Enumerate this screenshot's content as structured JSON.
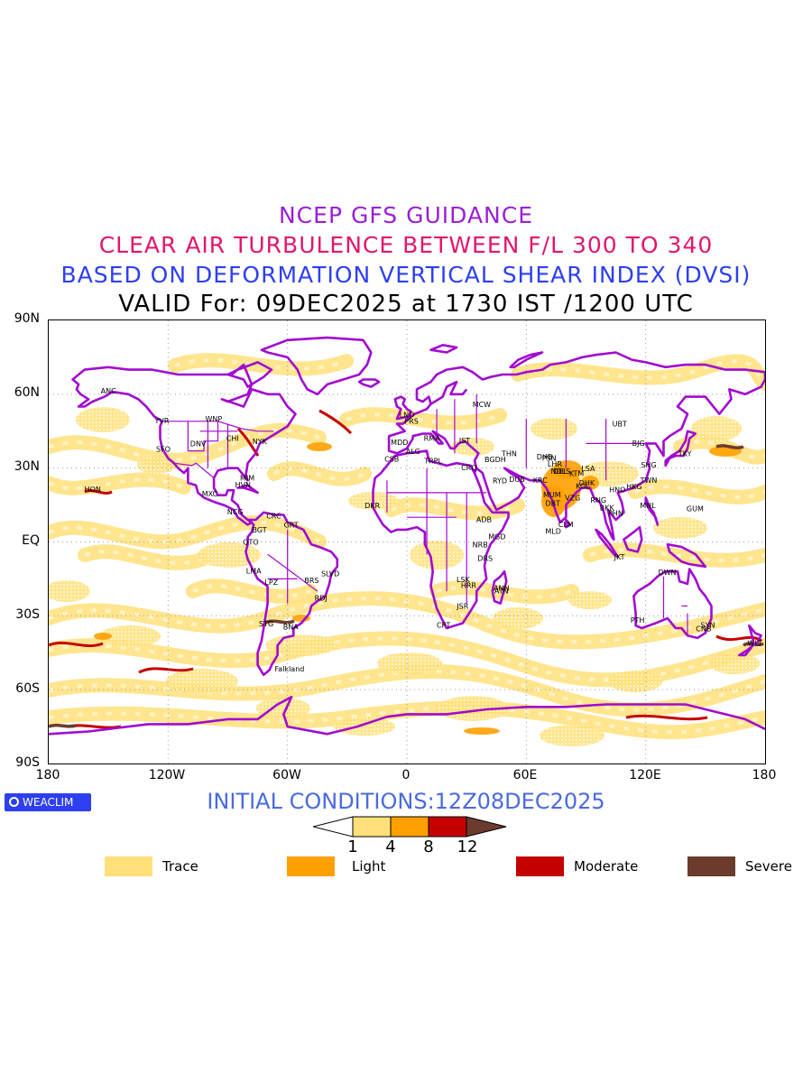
{
  "titles": {
    "line1": "NCEP GFS GUIDANCE",
    "line2": "CLEAR AIR TURBULENCE BETWEEN F/L 300 TO 340",
    "line3": "BASED ON DEFORMATION VERTICAL SHEAR INDEX (DVSI)",
    "line4": "VALID For: 09DEC2025 at 1730 IST /1200 UTC"
  },
  "axes": {
    "lat_labels": [
      "90N",
      "60N",
      "30N",
      "EQ",
      "30S",
      "60S",
      "90S"
    ],
    "lon_labels": [
      "180",
      "120W",
      "60W",
      "0",
      "60E",
      "120E",
      "180"
    ]
  },
  "initial_conditions": "INITIAL CONDITIONS:12Z08DEC2025",
  "brand": "WEACLIM",
  "colorbar": {
    "ticks": [
      "1",
      "4",
      "8",
      "12"
    ],
    "colors": [
      "#ffffff",
      "#ffe07a",
      "#ffa000",
      "#c40000",
      "#6b3c2e"
    ]
  },
  "legend": [
    {
      "label": "Trace",
      "color": "#ffe07a"
    },
    {
      "label": "Light",
      "color": "#ffa000"
    },
    {
      "label": "Moderate",
      "color": "#c40000"
    },
    {
      "label": "Severe",
      "color": "#6b3c2e"
    }
  ],
  "colors": {
    "coastline": "#a20ad0",
    "grid": "#999999"
  },
  "stations": [
    {
      "code": "ANC",
      "lon": -150,
      "lat": 61.2
    },
    {
      "code": "YVR",
      "lon": -123.1,
      "lat": 49.2
    },
    {
      "code": "WNP",
      "lon": -97.1,
      "lat": 49.9
    },
    {
      "code": "SFO",
      "lon": -122.4,
      "lat": 37.6
    },
    {
      "code": "DNV",
      "lon": -104.9,
      "lat": 39.7
    },
    {
      "code": "CHI",
      "lon": -87.6,
      "lat": 41.9
    },
    {
      "code": "NYK",
      "lon": -74,
      "lat": 40.7
    },
    {
      "code": "HON",
      "lon": -157.9,
      "lat": 21.3
    },
    {
      "code": "MXC",
      "lon": -99.1,
      "lat": 19.4
    },
    {
      "code": "MIM",
      "lon": -80.2,
      "lat": 25.8
    },
    {
      "code": "HVN",
      "lon": -82.4,
      "lat": 23.1
    },
    {
      "code": "NCG",
      "lon": -86.3,
      "lat": 12.1
    },
    {
      "code": "BGT",
      "lon": -74.1,
      "lat": 4.7
    },
    {
      "code": "CRC",
      "lon": -66.9,
      "lat": 10.5
    },
    {
      "code": "QTO",
      "lon": -78.5,
      "lat": -0.2
    },
    {
      "code": "GRT",
      "lon": -58.2,
      "lat": 6.8
    },
    {
      "code": "LMA",
      "lon": -77,
      "lat": -12
    },
    {
      "code": "LPZ",
      "lon": -68.1,
      "lat": -16.5
    },
    {
      "code": "BRS",
      "lon": -47.9,
      "lat": -15.8
    },
    {
      "code": "SLVD",
      "lon": -38.5,
      "lat": -13
    },
    {
      "code": "RDJ",
      "lon": -43.2,
      "lat": -22.9
    },
    {
      "code": "STG",
      "lon": -70.7,
      "lat": -33.4
    },
    {
      "code": "BNA",
      "lon": -58.4,
      "lat": -34.6
    },
    {
      "code": "Falkland",
      "lon": -59,
      "lat": -51.7
    },
    {
      "code": "MDD",
      "lon": -3.7,
      "lat": 40.4
    },
    {
      "code": "CSB",
      "lon": -7.6,
      "lat": 33.6
    },
    {
      "code": "ALG",
      "lon": 3.1,
      "lat": 36.7
    },
    {
      "code": "LND",
      "lon": 0,
      "lat": 51.5
    },
    {
      "code": "PRS",
      "lon": 2.3,
      "lat": 48.9
    },
    {
      "code": "RMA",
      "lon": 12.5,
      "lat": 41.9
    },
    {
      "code": "IST",
      "lon": 29,
      "lat": 41
    },
    {
      "code": "MCW",
      "lon": 37.6,
      "lat": 55.8
    },
    {
      "code": "TRPL",
      "lon": 13.2,
      "lat": 32.9
    },
    {
      "code": "CRO",
      "lon": 31.2,
      "lat": 30
    },
    {
      "code": "DKR",
      "lon": -17.4,
      "lat": 14.7
    },
    {
      "code": "ADB",
      "lon": 38.7,
      "lat": 9
    },
    {
      "code": "NRB",
      "lon": 36.8,
      "lat": -1.3
    },
    {
      "code": "DRS",
      "lon": 39.3,
      "lat": -6.8
    },
    {
      "code": "MGD",
      "lon": 45.3,
      "lat": 2
    },
    {
      "code": "ANN",
      "lon": 47.5,
      "lat": -18.9
    },
    {
      "code": "ATN",
      "lon": 47.5,
      "lat": -20
    },
    {
      "code": "HRR",
      "lon": 31,
      "lat": -17.8
    },
    {
      "code": "LSK",
      "lon": 28.3,
      "lat": -15.4
    },
    {
      "code": "JSR",
      "lon": 28,
      "lat": -26.2
    },
    {
      "code": "CPT",
      "lon": 18.4,
      "lat": -33.9
    },
    {
      "code": "BGDH",
      "lon": 44.4,
      "lat": 33.3
    },
    {
      "code": "THN",
      "lon": 51.4,
      "lat": 35.7
    },
    {
      "code": "RYD",
      "lon": 46.7,
      "lat": 24.7
    },
    {
      "code": "DUB",
      "lon": 55.3,
      "lat": 25.3
    },
    {
      "code": "KRC",
      "lon": 67,
      "lat": 24.9
    },
    {
      "code": "DHB",
      "lon": 69.2,
      "lat": 34.5
    },
    {
      "code": "PSN",
      "lon": 71.5,
      "lat": 34
    },
    {
      "code": "LHR",
      "lon": 74.3,
      "lat": 31.5
    },
    {
      "code": "DEL",
      "lon": 77.1,
      "lat": 28.6
    },
    {
      "code": "NDLS",
      "lon": 77.2,
      "lat": 28.6
    },
    {
      "code": "MUM",
      "lon": 72.9,
      "lat": 19.1
    },
    {
      "code": "DBT",
      "lon": 73.3,
      "lat": 15.5
    },
    {
      "code": "MLD",
      "lon": 73.5,
      "lat": 4.2
    },
    {
      "code": "CLM",
      "lon": 79.9,
      "lat": 6.9
    },
    {
      "code": "VZG",
      "lon": 83.3,
      "lat": 17.7
    },
    {
      "code": "KOL",
      "lon": 88.4,
      "lat": 22.6
    },
    {
      "code": "KTM",
      "lon": 85.3,
      "lat": 27.7
    },
    {
      "code": "LSA",
      "lon": 91.1,
      "lat": 29.7
    },
    {
      "code": "DHK",
      "lon": 90.4,
      "lat": 23.8
    },
    {
      "code": "RNG",
      "lon": 96.2,
      "lat": 16.8
    },
    {
      "code": "BKK",
      "lon": 100.5,
      "lat": 13.8
    },
    {
      "code": "PHN",
      "lon": 104.9,
      "lat": 11.6
    },
    {
      "code": "HNO",
      "lon": 105.8,
      "lat": 21
    },
    {
      "code": "HKG",
      "lon": 114.2,
      "lat": 22.3
    },
    {
      "code": "TWN",
      "lon": 121.5,
      "lat": 25
    },
    {
      "code": "SHG",
      "lon": 121.5,
      "lat": 31.2
    },
    {
      "code": "BJG",
      "lon": 116.4,
      "lat": 39.9
    },
    {
      "code": "UBT",
      "lon": 106.9,
      "lat": 47.9
    },
    {
      "code": "TKY",
      "lon": 139.7,
      "lat": 35.7
    },
    {
      "code": "MNL",
      "lon": 121,
      "lat": 14.6
    },
    {
      "code": "GUM",
      "lon": 144.8,
      "lat": 13.4
    },
    {
      "code": "JKT",
      "lon": 106.8,
      "lat": -6.2
    },
    {
      "code": "DWN",
      "lon": 130.8,
      "lat": -12.5
    },
    {
      "code": "PTH",
      "lon": 115.9,
      "lat": -31.9
    },
    {
      "code": "CNB",
      "lon": 149.1,
      "lat": -35.3
    },
    {
      "code": "SYN",
      "lon": 151.2,
      "lat": -33.9
    },
    {
      "code": "WLT",
      "lon": 174.8,
      "lat": -41.3
    }
  ]
}
